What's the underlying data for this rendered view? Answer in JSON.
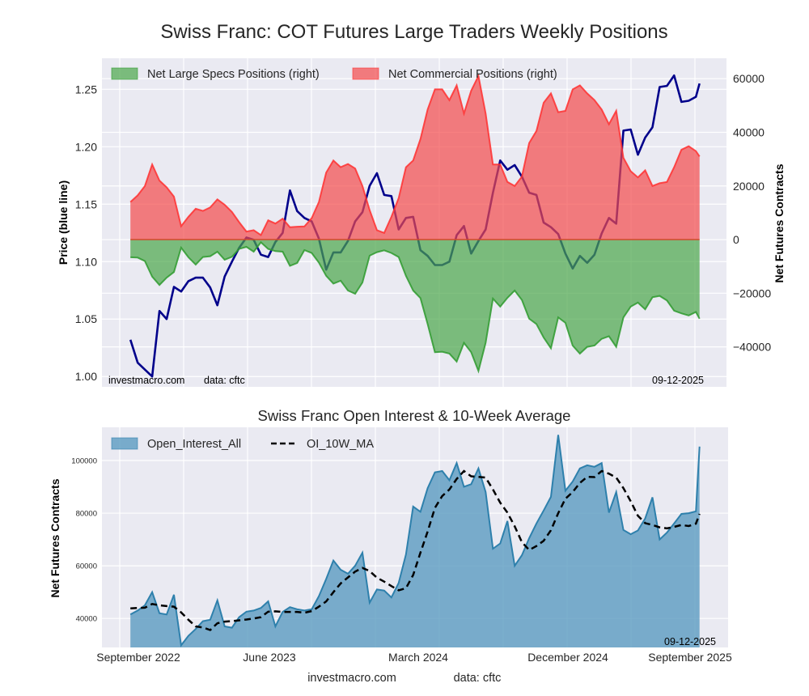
{
  "title": "Swiss Franc: COT Futures Large Traders Weekly Positions",
  "footer": {
    "site": "investmacro.com",
    "source": "data: cftc"
  },
  "chart_data": [
    {
      "type": "area",
      "title": "Swiss Franc: COT Futures Large Traders Weekly Positions",
      "xlim": [
        "2022-07-13",
        "2025-10-31"
      ],
      "ylabel_left": "Price (blue line)",
      "ylabel_right": "Net Futures Contracts",
      "ylim_left": [
        0.991,
        1.277
      ],
      "ylim_right": [
        -54900,
        67600
      ],
      "yticks_left": [
        "1.00",
        "1.05",
        "1.10",
        "1.15",
        "1.20",
        "1.25"
      ],
      "yticks_right": [
        "−40000",
        "−20000",
        "0",
        "20000",
        "40000",
        "60000"
      ],
      "grid": true,
      "legend_position": "top-left",
      "annotations": {
        "site": "investmacro.com",
        "source": "data: cftc",
        "date": "09-12-2025"
      },
      "dates": [
        "2022-09-06",
        "2022-09-20",
        "2022-10-04",
        "2022-10-18",
        "2022-11-01",
        "2022-11-15",
        "2022-11-29",
        "2022-12-13",
        "2022-12-27",
        "2023-01-10",
        "2023-01-24",
        "2023-02-07",
        "2023-02-21",
        "2023-03-07",
        "2023-03-21",
        "2023-04-04",
        "2023-04-18",
        "2023-05-02",
        "2023-05-16",
        "2023-05-30",
        "2023-06-13",
        "2023-06-27",
        "2023-07-11",
        "2023-07-25",
        "2023-08-08",
        "2023-08-22",
        "2023-09-05",
        "2023-09-19",
        "2023-10-03",
        "2023-10-17",
        "2023-10-31",
        "2023-11-14",
        "2023-11-28",
        "2023-12-12",
        "2023-12-26",
        "2024-01-09",
        "2024-01-23",
        "2024-02-06",
        "2024-02-20",
        "2024-03-05",
        "2024-03-19",
        "2024-04-02",
        "2024-04-16",
        "2024-04-30",
        "2024-05-14",
        "2024-05-28",
        "2024-06-11",
        "2024-06-25",
        "2024-07-09",
        "2024-07-23",
        "2024-08-06",
        "2024-08-20",
        "2024-09-03",
        "2024-09-17",
        "2024-10-01",
        "2024-10-15",
        "2024-10-29",
        "2024-11-12",
        "2024-11-26",
        "2024-12-10",
        "2024-12-24",
        "2025-01-07",
        "2025-01-21",
        "2025-02-04",
        "2025-02-18",
        "2025-03-04",
        "2025-03-18",
        "2025-04-01",
        "2025-04-15",
        "2025-04-29",
        "2025-05-13",
        "2025-05-27",
        "2025-06-10",
        "2025-06-24",
        "2025-07-08",
        "2025-07-22",
        "2025-08-05",
        "2025-08-19",
        "2025-09-02",
        "2025-09-09"
      ],
      "series": [
        {
          "name": "Net Large Specs Positions (right)",
          "axis": "right",
          "fill": "#4aa64a",
          "line": "#2e9a2e",
          "values": [
            -6600,
            -6700,
            -8000,
            -13800,
            -16900,
            -14200,
            -12100,
            -3000,
            -6600,
            -9300,
            -6500,
            -6200,
            -4500,
            -7500,
            -6400,
            -3500,
            -2700,
            -4500,
            -1000,
            -3500,
            -4300,
            -4500,
            -9800,
            -8700,
            -3900,
            -5000,
            -8600,
            -13500,
            -16400,
            -15300,
            -19000,
            -20200,
            -16000,
            -6000,
            -4700,
            -4000,
            -5000,
            -6500,
            -13500,
            -19000,
            -21800,
            -31500,
            -42000,
            -41800,
            -42500,
            -45500,
            -38500,
            -42000,
            -49000,
            -38500,
            -22000,
            -25000,
            -21700,
            -19000,
            -22500,
            -29500,
            -31500,
            -36500,
            -40500,
            -29000,
            -31000,
            -39500,
            -42500,
            -40000,
            -39500,
            -37000,
            -36000,
            -40000,
            -29000,
            -25000,
            -23500,
            -26000,
            -21500,
            -21000,
            -22700,
            -26500,
            -27500,
            -28300,
            -27000,
            -29500
          ]
        },
        {
          "name": "Net Commercial Positions (right)",
          "axis": "right",
          "fill": "#f44a4c",
          "line": "#ff3030",
          "values": [
            14000,
            16500,
            20000,
            28000,
            22000,
            19500,
            16000,
            5000,
            8500,
            11500,
            10700,
            12000,
            15000,
            13000,
            10300,
            6500,
            3000,
            3500,
            1700,
            7200,
            6000,
            7800,
            4600,
            4800,
            4900,
            8000,
            14000,
            25000,
            29500,
            27000,
            28200,
            26500,
            20000,
            11000,
            3500,
            2500,
            8500,
            15500,
            27000,
            29500,
            37500,
            48500,
            56000,
            56000,
            52000,
            57500,
            47000,
            55500,
            61000,
            47000,
            28000,
            28000,
            21500,
            20000,
            23500,
            36000,
            40500,
            51000,
            54500,
            47500,
            48000,
            56000,
            57500,
            54500,
            52000,
            48500,
            43000,
            48000,
            30500,
            25500,
            23200,
            25800,
            20000,
            21000,
            21500,
            27000,
            33500,
            34800,
            33000,
            31000
          ]
        },
        {
          "axis": "left",
          "line": "#00008b",
          "values": [
            1.032,
            1.012,
            1.006,
            1.0,
            1.057,
            1.05,
            1.078,
            1.074,
            1.083,
            1.086,
            1.086,
            1.0775,
            1.062,
            1.087,
            1.1,
            1.112,
            1.121,
            1.119,
            1.106,
            1.104,
            1.117,
            1.125,
            1.162,
            1.144,
            1.138,
            1.135,
            1.12,
            1.093,
            1.108,
            1.108,
            1.118,
            1.135,
            1.143,
            1.166,
            1.177,
            1.158,
            1.157,
            1.128,
            1.138,
            1.139,
            1.11,
            1.105,
            1.097,
            1.097,
            1.1,
            1.123,
            1.131,
            1.107,
            1.118,
            1.128,
            1.16,
            1.188,
            1.18,
            1.184,
            1.174,
            1.16,
            1.158,
            1.134,
            1.13,
            1.124,
            1.107,
            1.094,
            1.105,
            1.099,
            1.106,
            1.1245,
            1.138,
            1.133,
            1.214,
            1.215,
            1.193,
            1.208,
            1.217,
            1.252,
            1.253,
            1.262,
            1.239,
            1.24,
            1.2435,
            1.255
          ]
        }
      ]
    },
    {
      "type": "area",
      "title": "Swiss Franc Open Interest & 10-Week Average",
      "xlim": [
        "2022-07-13",
        "2025-10-31"
      ],
      "ylabel": "Net Futures Contracts",
      "ylim": [
        29000,
        112600
      ],
      "yticks": [
        "40000",
        "60000",
        "80000",
        "100000"
      ],
      "xticks": [
        "September 2022",
        "June 2023",
        "March 2024",
        "December 2024",
        "September 2025"
      ],
      "grid": true,
      "legend_position": "top-left",
      "annotations": {
        "date": "09-12-2025"
      },
      "dates": [
        "2022-09-06",
        "2022-09-20",
        "2022-10-04",
        "2022-10-18",
        "2022-11-01",
        "2022-11-15",
        "2022-11-29",
        "2022-12-13",
        "2022-12-27",
        "2023-01-10",
        "2023-01-24",
        "2023-02-07",
        "2023-02-21",
        "2023-03-07",
        "2023-03-21",
        "2023-04-04",
        "2023-04-18",
        "2023-05-02",
        "2023-05-16",
        "2023-05-30",
        "2023-06-13",
        "2023-06-27",
        "2023-07-11",
        "2023-07-25",
        "2023-08-08",
        "2023-08-22",
        "2023-09-05",
        "2023-09-19",
        "2023-10-03",
        "2023-10-17",
        "2023-10-31",
        "2023-11-14",
        "2023-11-28",
        "2023-12-12",
        "2023-12-26",
        "2024-01-09",
        "2024-01-23",
        "2024-02-06",
        "2024-02-20",
        "2024-03-05",
        "2024-03-19",
        "2024-04-02",
        "2024-04-16",
        "2024-04-30",
        "2024-05-14",
        "2024-05-28",
        "2024-06-11",
        "2024-06-25",
        "2024-07-09",
        "2024-07-23",
        "2024-08-06",
        "2024-08-20",
        "2024-09-03",
        "2024-09-17",
        "2024-10-01",
        "2024-10-15",
        "2024-10-29",
        "2024-11-12",
        "2024-11-26",
        "2024-12-10",
        "2024-12-24",
        "2025-01-07",
        "2025-01-21",
        "2025-02-04",
        "2025-02-18",
        "2025-03-04",
        "2025-03-18",
        "2025-04-01",
        "2025-04-15",
        "2025-04-29",
        "2025-05-13",
        "2025-05-27",
        "2025-06-10",
        "2025-06-24",
        "2025-07-08",
        "2025-07-22",
        "2025-08-05",
        "2025-08-19",
        "2025-09-02",
        "2025-09-09"
      ],
      "series": [
        {
          "name": "Open_Interest_All",
          "fill": "#5b9bc0",
          "line": "#2e80ac",
          "values": [
            41500,
            43000,
            45000,
            50000,
            42000,
            41500,
            49000,
            29800,
            33400,
            36000,
            39000,
            39500,
            46900,
            37000,
            36500,
            40500,
            42600,
            43000,
            44000,
            46500,
            37000,
            42500,
            44300,
            43500,
            43000,
            43500,
            48500,
            55000,
            62000,
            58500,
            57000,
            60000,
            65000,
            46000,
            51000,
            50600,
            48000,
            53500,
            64300,
            82500,
            80500,
            89500,
            95500,
            96000,
            92500,
            99000,
            90000,
            91000,
            97000,
            88000,
            66500,
            68500,
            77000,
            60000,
            64000,
            70500,
            76100,
            81000,
            86200,
            109700,
            88500,
            92000,
            97000,
            98200,
            97600,
            99000,
            80200,
            88000,
            73600,
            72000,
            73400,
            78000,
            86000,
            70000,
            72600,
            76100,
            79700,
            80000,
            80700,
            105300
          ]
        },
        {
          "name": "OI_10W_MA",
          "line": "#000000",
          "dashed": true,
          "values": [
            43800,
            44000,
            44100,
            45500,
            45000,
            44700,
            44500,
            42300,
            39500,
            37000,
            36600,
            35600,
            38200,
            38800,
            39000,
            39300,
            39600,
            40000,
            40500,
            42600,
            42700,
            42500,
            42500,
            42500,
            42200,
            42800,
            44500,
            46500,
            50000,
            53300,
            55600,
            57800,
            59200,
            58000,
            55500,
            54000,
            52300,
            50700,
            51500,
            56500,
            65000,
            73000,
            82000,
            86500,
            89000,
            93000,
            96000,
            94000,
            93800,
            93500,
            89000,
            84000,
            80200,
            75000,
            69000,
            66000,
            67500,
            69500,
            73500,
            80000,
            85500,
            88000,
            91500,
            93800,
            93700,
            96000,
            95000,
            93500,
            89500,
            84500,
            79000,
            76200,
            75500,
            74600,
            74200,
            74800,
            75500,
            75100,
            76000,
            79700
          ]
        }
      ]
    }
  ]
}
